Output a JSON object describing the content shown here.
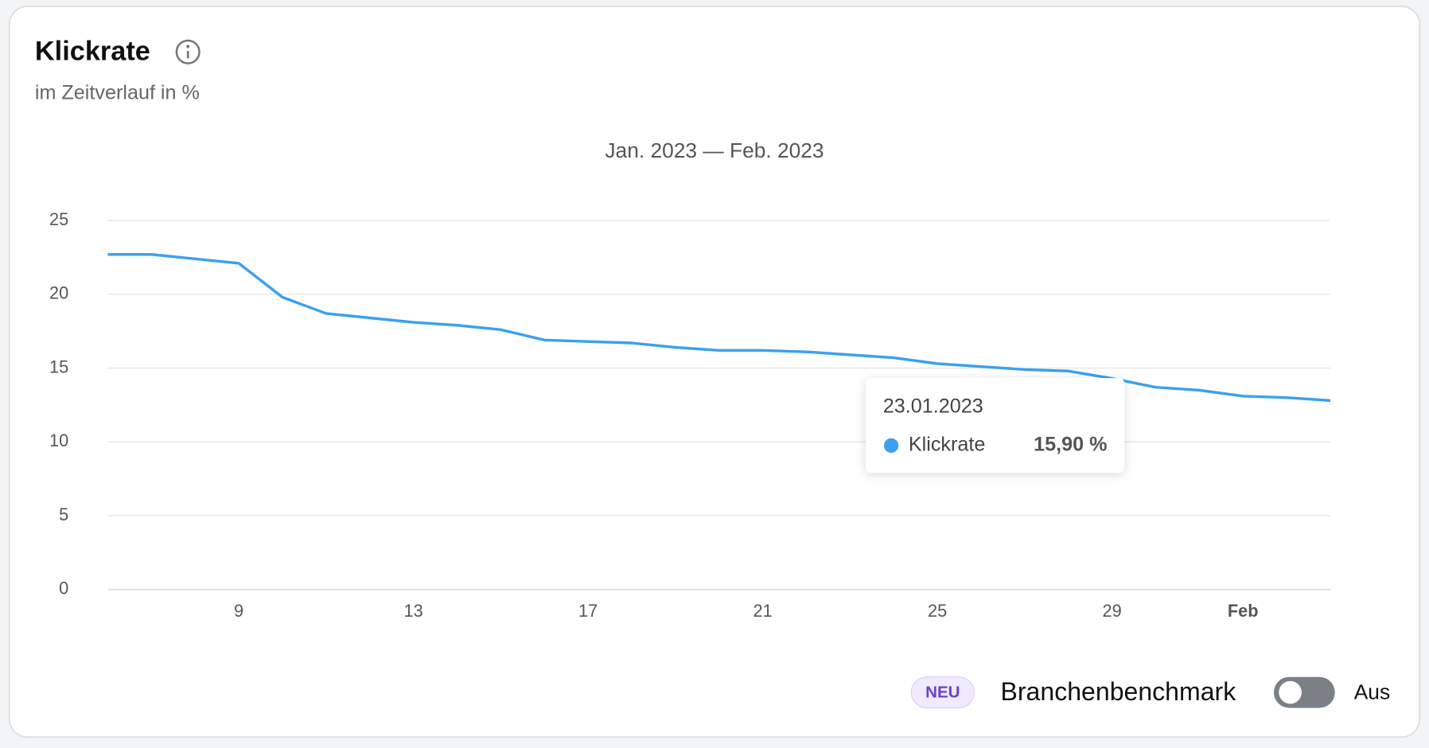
{
  "card": {
    "title": "Klickrate",
    "subtitle": "im Zeitverlauf in %"
  },
  "chart_data": {
    "type": "line",
    "title": "Jan. 2023 — Feb. 2023",
    "categories": [
      null,
      null,
      null,
      "9",
      null,
      null,
      null,
      "13",
      null,
      null,
      null,
      "17",
      null,
      null,
      null,
      "21",
      null,
      null,
      null,
      "25",
      null,
      null,
      null,
      "29",
      null,
      null,
      "Feb",
      null,
      null
    ],
    "series": [
      {
        "name": "Klickrate",
        "color": "#3aa1ee",
        "values": [
          22.7,
          22.7,
          22.4,
          22.1,
          19.8,
          18.7,
          18.4,
          18.1,
          17.9,
          17.6,
          16.9,
          16.8,
          16.7,
          16.4,
          16.2,
          16.2,
          16.1,
          15.9,
          15.7,
          15.3,
          15.1,
          14.9,
          14.8,
          14.3,
          13.7,
          13.5,
          13.1,
          13.0,
          12.8
        ]
      }
    ],
    "ylim": [
      0,
      25
    ],
    "yticks": [
      0,
      5,
      10,
      15,
      20,
      25
    ],
    "grid": true,
    "tooltip": {
      "title": "23.01.2023",
      "value": 15.9,
      "value_label": "15,90 %"
    }
  },
  "footer": {
    "badge": "NEU",
    "label": "Branchenbenchmark",
    "toggle_state": "Aus"
  }
}
